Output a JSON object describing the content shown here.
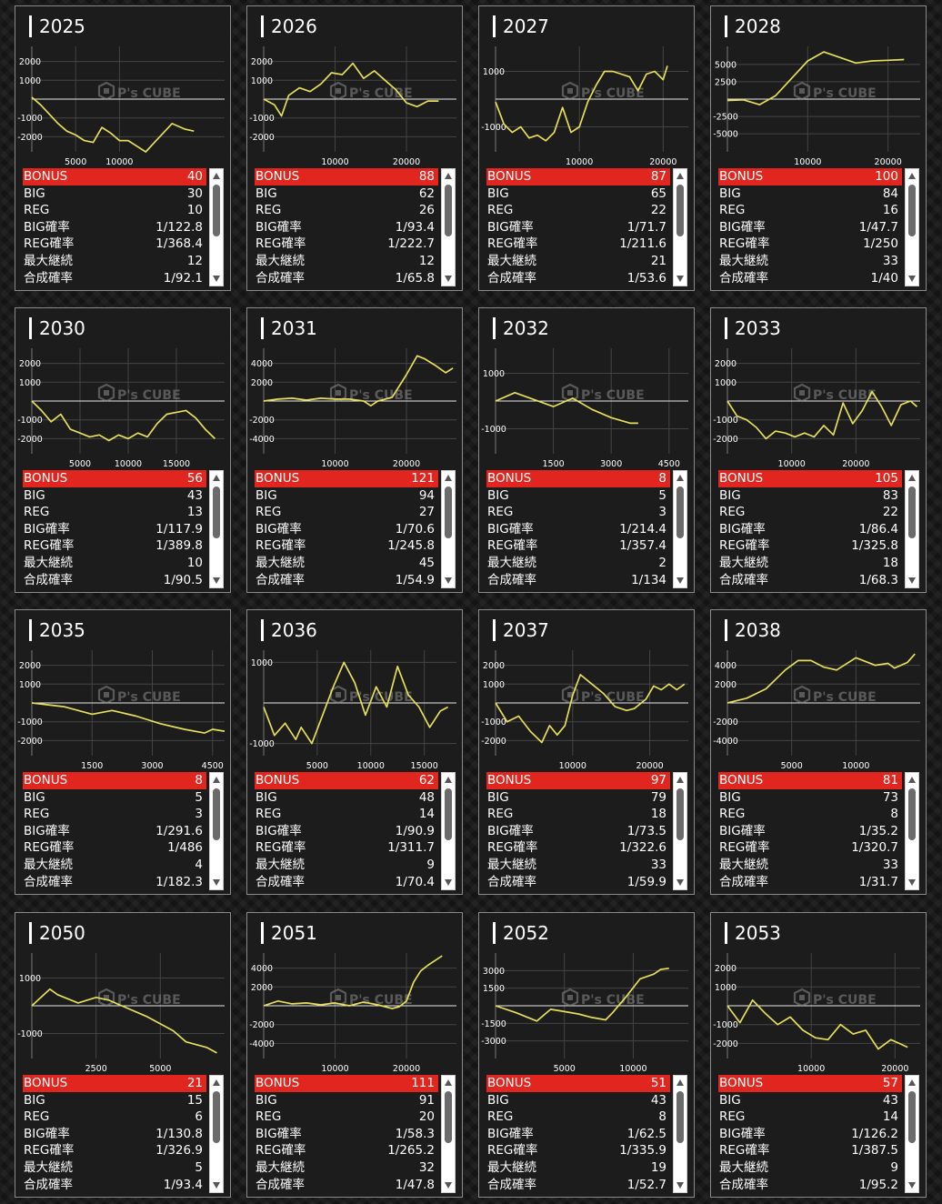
{
  "watermark": "P's CUBE",
  "line_color": "#e6de5a",
  "bonus_color": "#e0261e",
  "stat_labels": [
    "BONUS",
    "BIG",
    "REG",
    "BIG確率",
    "REG確率",
    "最大継続",
    "合成確率"
  ],
  "machines": [
    {
      "id": "2025",
      "stats": [
        "40",
        "30",
        "10",
        "1/122.8",
        "1/368.4",
        "12",
        "1/92.1"
      ],
      "chart_data": {
        "type": "line",
        "ylim": [
          -2800,
          2800
        ],
        "xmax": 22000,
        "yticks": [
          2000,
          1000,
          -1000,
          -2000
        ],
        "xticks": [
          5000,
          10000
        ],
        "x": [
          0,
          1000,
          2000,
          3000,
          4000,
          5000,
          6000,
          7000,
          8000,
          9000,
          10000,
          11000,
          12000,
          13000,
          14000,
          15000,
          16000,
          17500,
          18500
        ],
        "y": [
          100,
          -300,
          -800,
          -1300,
          -1700,
          -1900,
          -2200,
          -2300,
          -1500,
          -1800,
          -2200,
          -2200,
          -2500,
          -2800,
          -2300,
          -1800,
          -1300,
          -1600,
          -1700
        ]
      }
    },
    {
      "id": "2026",
      "stats": [
        "88",
        "62",
        "26",
        "1/93.4",
        "1/222.7",
        "12",
        "1/65.8"
      ],
      "chart_data": {
        "type": "line",
        "ylim": [
          -2800,
          2800
        ],
        "xmax": 27000,
        "yticks": [
          2000,
          1000,
          -1000,
          -2000
        ],
        "xticks": [
          10000,
          20000
        ],
        "x": [
          0,
          1500,
          2500,
          3500,
          5000,
          6500,
          8000,
          9500,
          11000,
          12500,
          14000,
          15500,
          17000,
          18500,
          20000,
          21500,
          23000,
          24500
        ],
        "y": [
          0,
          -300,
          -900,
          200,
          600,
          400,
          800,
          1400,
          1300,
          1900,
          1100,
          1500,
          1000,
          500,
          -200,
          -400,
          -100,
          -100
        ]
      }
    },
    {
      "id": "2027",
      "stats": [
        "87",
        "65",
        "22",
        "1/71.7",
        "1/211.6",
        "21",
        "1/53.6"
      ],
      "chart_data": {
        "type": "line",
        "ylim": [
          -1900,
          1900
        ],
        "xmax": 23000,
        "yticks": [
          1000,
          -1000
        ],
        "xticks": [
          10000,
          20000
        ],
        "x": [
          0,
          1000,
          2000,
          3000,
          4000,
          5000,
          6000,
          7000,
          8000,
          9000,
          10000,
          11000,
          12000,
          13000,
          14000,
          15000,
          16000,
          17000,
          18000,
          19000,
          20000,
          20500
        ],
        "y": [
          -100,
          -900,
          -1200,
          -1000,
          -1400,
          -1300,
          -1500,
          -1200,
          -300,
          -1200,
          -1000,
          -100,
          500,
          1000,
          1000,
          900,
          800,
          300,
          900,
          1000,
          700,
          1200
        ]
      }
    },
    {
      "id": "2028",
      "stats": [
        "100",
        "84",
        "16",
        "1/47.7",
        "1/250",
        "33",
        "1/40"
      ],
      "chart_data": {
        "type": "line",
        "ylim": [
          -7600,
          7600
        ],
        "xmax": 24000,
        "yticks": [
          5000,
          2500,
          -2500,
          -5000
        ],
        "xticks": [
          10000,
          20000
        ],
        "x": [
          0,
          2000,
          4000,
          6000,
          8000,
          10000,
          12000,
          14000,
          16000,
          18000,
          20000,
          22000
        ],
        "y": [
          -200,
          -100,
          -800,
          500,
          3000,
          5500,
          6800,
          6000,
          5200,
          5500,
          5600,
          5700
        ]
      }
    },
    {
      "id": "2030",
      "stats": [
        "56",
        "43",
        "13",
        "1/117.9",
        "1/389.8",
        "10",
        "1/90.5"
      ],
      "chart_data": {
        "type": "line",
        "ylim": [
          -2800,
          2800
        ],
        "xmax": 20000,
        "yticks": [
          2000,
          1000,
          -1000,
          -2000
        ],
        "xticks": [
          5000,
          10000,
          15000
        ],
        "x": [
          0,
          1000,
          2000,
          3000,
          4000,
          5000,
          6000,
          7000,
          8000,
          9000,
          10000,
          11000,
          12000,
          13000,
          14000,
          15000,
          16000,
          17000,
          18000,
          19000
        ],
        "y": [
          0,
          -500,
          -1100,
          -700,
          -1500,
          -1700,
          -1900,
          -1800,
          -2100,
          -1800,
          -2000,
          -1700,
          -1900,
          -1200,
          -700,
          -600,
          -500,
          -900,
          -1500,
          -2000
        ]
      }
    },
    {
      "id": "2031",
      "stats": [
        "121",
        "94",
        "27",
        "1/70.6",
        "1/245.8",
        "45",
        "1/54.9"
      ],
      "chart_data": {
        "type": "line",
        "ylim": [
          -5600,
          5600
        ],
        "xmax": 27000,
        "yticks": [
          4000,
          2000,
          -2000,
          -4000
        ],
        "xticks": [
          10000,
          20000
        ],
        "x": [
          0,
          2000,
          4000,
          6000,
          8000,
          10000,
          12000,
          14000,
          15000,
          16000,
          18000,
          20000,
          21500,
          22500,
          24000,
          25500,
          26500
        ],
        "y": [
          0,
          200,
          300,
          100,
          300,
          200,
          200,
          0,
          -500,
          0,
          400,
          2800,
          4800,
          4500,
          3800,
          3000,
          3500
        ]
      }
    },
    {
      "id": "2032",
      "stats": [
        "8",
        "5",
        "3",
        "1/214.4",
        "1/357.4",
        "2",
        "1/134"
      ],
      "chart_data": {
        "type": "line",
        "ylim": [
          -1900,
          1900
        ],
        "xmax": 5000,
        "yticks": [
          1000,
          -1000
        ],
        "xticks": [
          1500,
          3000,
          4500
        ],
        "x": [
          0,
          500,
          1500,
          2000,
          2500,
          3000,
          3500,
          3700
        ],
        "y": [
          0,
          300,
          -200,
          100,
          -300,
          -600,
          -800,
          -800
        ]
      }
    },
    {
      "id": "2033",
      "stats": [
        "105",
        "83",
        "22",
        "1/86.4",
        "1/325.8",
        "18",
        "1/68.3"
      ],
      "chart_data": {
        "type": "line",
        "ylim": [
          -2800,
          2800
        ],
        "xmax": 30000,
        "yticks": [
          2000,
          1000,
          -1000,
          -2000
        ],
        "xticks": [
          10000,
          20000
        ],
        "x": [
          0,
          1500,
          3000,
          4500,
          6000,
          7500,
          9000,
          10500,
          12000,
          13500,
          15000,
          16500,
          18000,
          19500,
          21000,
          22500,
          24000,
          25500,
          27000,
          28500,
          29500
        ],
        "y": [
          0,
          -800,
          -1000,
          -1400,
          -2000,
          -1600,
          -1700,
          -1900,
          -1700,
          -1900,
          -1300,
          -1800,
          -100,
          -1200,
          -500,
          500,
          -300,
          -1300,
          -200,
          0,
          -300
        ]
      }
    },
    {
      "id": "2035",
      "stats": [
        "8",
        "5",
        "3",
        "1/291.6",
        "1/486",
        "4",
        "1/182.3"
      ],
      "chart_data": {
        "type": "line",
        "ylim": [
          -2800,
          2800
        ],
        "xmax": 4800,
        "yticks": [
          2000,
          1000,
          -1000,
          -2000
        ],
        "xticks": [
          1500,
          3000,
          4500
        ],
        "x": [
          0,
          800,
          1500,
          2000,
          2600,
          3200,
          3800,
          4300,
          4500,
          4800
        ],
        "y": [
          0,
          -200,
          -600,
          -400,
          -700,
          -1100,
          -1400,
          -1600,
          -1400,
          -1500
        ]
      }
    },
    {
      "id": "2036",
      "stats": [
        "62",
        "48",
        "14",
        "1/90.9",
        "1/311.7",
        "9",
        "1/70.4"
      ],
      "chart_data": {
        "type": "line",
        "ylim": [
          -1300,
          1300
        ],
        "xmax": 18000,
        "yticks": [
          1000,
          -1000
        ],
        "xticks": [
          5000,
          10000,
          15000
        ],
        "x": [
          0,
          1000,
          2000,
          3000,
          3500,
          4500,
          5500,
          6500,
          7500,
          8500,
          9500,
          10500,
          11500,
          12500,
          13500,
          14500,
          15500,
          16500,
          17200
        ],
        "y": [
          -100,
          -800,
          -500,
          -900,
          -600,
          -1000,
          -300,
          400,
          1000,
          500,
          -300,
          400,
          -100,
          900,
          200,
          -100,
          -600,
          -200,
          -100
        ]
      }
    },
    {
      "id": "2037",
      "stats": [
        "97",
        "79",
        "18",
        "1/73.5",
        "1/322.6",
        "33",
        "1/59.9"
      ],
      "chart_data": {
        "type": "line",
        "ylim": [
          -2800,
          2800
        ],
        "xmax": 25000,
        "yticks": [
          2000,
          1000,
          -1000,
          -2000
        ],
        "xticks": [
          10000,
          20000
        ],
        "x": [
          0,
          1500,
          3000,
          4500,
          6000,
          7000,
          8000,
          9000,
          10000,
          11000,
          12500,
          14000,
          15500,
          17000,
          18000,
          19500,
          20500,
          21500,
          22500,
          23500,
          24500
        ],
        "y": [
          0,
          -1000,
          -700,
          -1500,
          -2100,
          -1200,
          -1700,
          -1200,
          400,
          1500,
          1000,
          500,
          -200,
          -400,
          -300,
          200,
          900,
          700,
          1000,
          700,
          1000
        ]
      }
    },
    {
      "id": "2038",
      "stats": [
        "81",
        "73",
        "8",
        "1/35.2",
        "1/320.7",
        "33",
        "1/31.7"
      ],
      "chart_data": {
        "type": "line",
        "ylim": [
          -5600,
          5600
        ],
        "xmax": 15000,
        "yticks": [
          4000,
          2000,
          -2000,
          -4000
        ],
        "xticks": [
          5000,
          10000
        ],
        "x": [
          0,
          1500,
          3000,
          4500,
          5500,
          6500,
          7500,
          8500,
          10000,
          11500,
          12500,
          13000,
          14000,
          14600
        ],
        "y": [
          0,
          500,
          1500,
          3500,
          4500,
          4500,
          3800,
          3500,
          4800,
          4000,
          4200,
          3700,
          4300,
          5200
        ]
      }
    },
    {
      "id": "2050",
      "stats": [
        "21",
        "15",
        "6",
        "1/130.8",
        "1/326.9",
        "5",
        "1/93.4"
      ],
      "chart_data": {
        "type": "line",
        "ylim": [
          -1900,
          1900
        ],
        "xmax": 7500,
        "yticks": [
          1000,
          -1000
        ],
        "xticks": [
          2500,
          5000
        ],
        "x": [
          0,
          700,
          1000,
          1800,
          2500,
          3000,
          3500,
          4500,
          5500,
          6000,
          6800,
          7200
        ],
        "y": [
          0,
          600,
          400,
          100,
          300,
          200,
          0,
          -400,
          -900,
          -1300,
          -1500,
          -1700
        ]
      }
    },
    {
      "id": "2051",
      "stats": [
        "111",
        "91",
        "20",
        "1/58.3",
        "1/265.2",
        "32",
        "1/47.8"
      ],
      "chart_data": {
        "type": "line",
        "ylim": [
          -5600,
          5600
        ],
        "xmax": 27000,
        "yticks": [
          4000,
          2000,
          -2000,
          -4000
        ],
        "xticks": [
          10000,
          20000
        ],
        "x": [
          0,
          2000,
          4000,
          6000,
          8000,
          10000,
          12000,
          14000,
          16000,
          18000,
          19000,
          20000,
          21000,
          22000,
          23000,
          24000,
          25000
        ],
        "y": [
          0,
          500,
          200,
          300,
          100,
          300,
          0,
          400,
          100,
          -300,
          -100,
          500,
          2500,
          3700,
          4300,
          4800,
          5300
        ]
      }
    },
    {
      "id": "2052",
      "stats": [
        "51",
        "43",
        "8",
        "1/62.5",
        "1/335.9",
        "19",
        "1/52.7"
      ],
      "chart_data": {
        "type": "line",
        "ylim": [
          -4500,
          4500
        ],
        "xmax": 14000,
        "yticks": [
          3000,
          1500,
          -1500,
          -3000
        ],
        "xticks": [
          5000,
          10000
        ],
        "x": [
          0,
          1500,
          3000,
          4000,
          5000,
          6000,
          7000,
          8000,
          8500,
          9500,
          10500,
          11500,
          12000,
          12600
        ],
        "y": [
          0,
          -600,
          -1300,
          -300,
          -500,
          -700,
          -1000,
          -1200,
          -600,
          800,
          2300,
          2700,
          3100,
          3200
        ]
      }
    },
    {
      "id": "2053",
      "stats": [
        "57",
        "43",
        "14",
        "1/126.2",
        "1/387.5",
        "9",
        "1/95.2"
      ],
      "chart_data": {
        "type": "line",
        "ylim": [
          -2800,
          2800
        ],
        "xmax": 23000,
        "yticks": [
          2000,
          1000,
          -1000,
          -2000
        ],
        "xticks": [
          10000,
          20000
        ],
        "x": [
          0,
          1500,
          3000,
          4500,
          6000,
          7500,
          9000,
          10500,
          12000,
          13500,
          15000,
          16500,
          18000,
          19500,
          20500,
          21500
        ],
        "y": [
          0,
          -900,
          300,
          -400,
          -1000,
          -600,
          -1300,
          -1700,
          -1800,
          -1000,
          -1500,
          -1300,
          -2300,
          -1800,
          -2000,
          -2200
        ]
      }
    }
  ]
}
